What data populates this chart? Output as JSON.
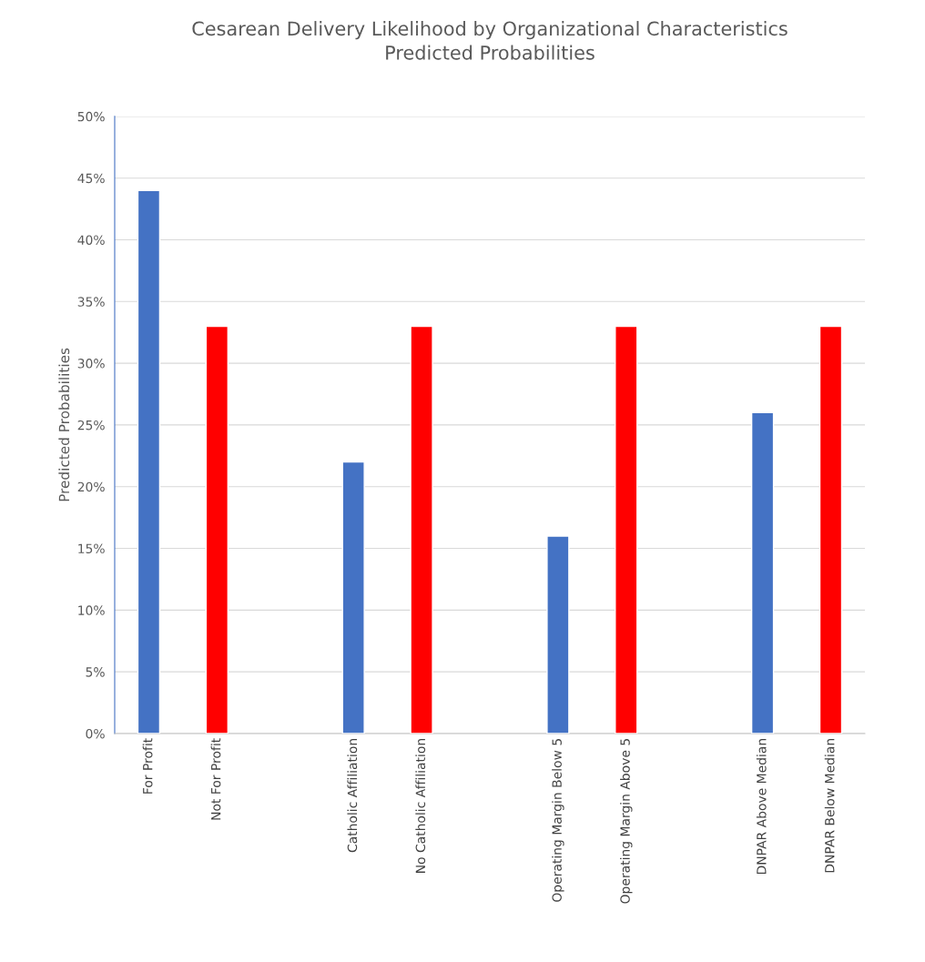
{
  "chart_data": {
    "type": "bar",
    "title": "Cesarean Delivery Likelihood by Organizational Characteristics\nPredicted Probabilities",
    "ylabel": "Predicted Probabilities",
    "categories": [
      "For Profit",
      "Not For Profit",
      null,
      "Catholic Affiliation",
      "No Catholic Affiliation",
      null,
      "Operating Margin Below 5",
      "Operating Margin Above 5",
      null,
      "DNPAR Above Median",
      "DNPAR Below Median"
    ],
    "values": [
      44,
      33,
      null,
      22,
      33,
      null,
      16,
      33,
      null,
      26,
      33
    ],
    "colors": [
      "#4472c4",
      "#ff0000",
      null,
      "#4472c4",
      "#ff0000",
      null,
      "#4472c4",
      "#ff0000",
      null,
      "#4472c4",
      "#ff0000"
    ],
    "ylim": [
      0,
      50
    ],
    "yticks": [
      {
        "value": 0,
        "label": "0%"
      },
      {
        "value": 5,
        "label": "5%"
      },
      {
        "value": 10,
        "label": "10%"
      },
      {
        "value": 15,
        "label": "15%"
      },
      {
        "value": 20,
        "label": "20%"
      },
      {
        "value": 25,
        "label": "25%"
      },
      {
        "value": 30,
        "label": "30%"
      },
      {
        "value": 35,
        "label": "35%"
      },
      {
        "value": 40,
        "label": "40%"
      },
      {
        "value": 45,
        "label": "45%"
      },
      {
        "value": 50,
        "label": "50%"
      }
    ],
    "grid": "y",
    "legend": false
  }
}
